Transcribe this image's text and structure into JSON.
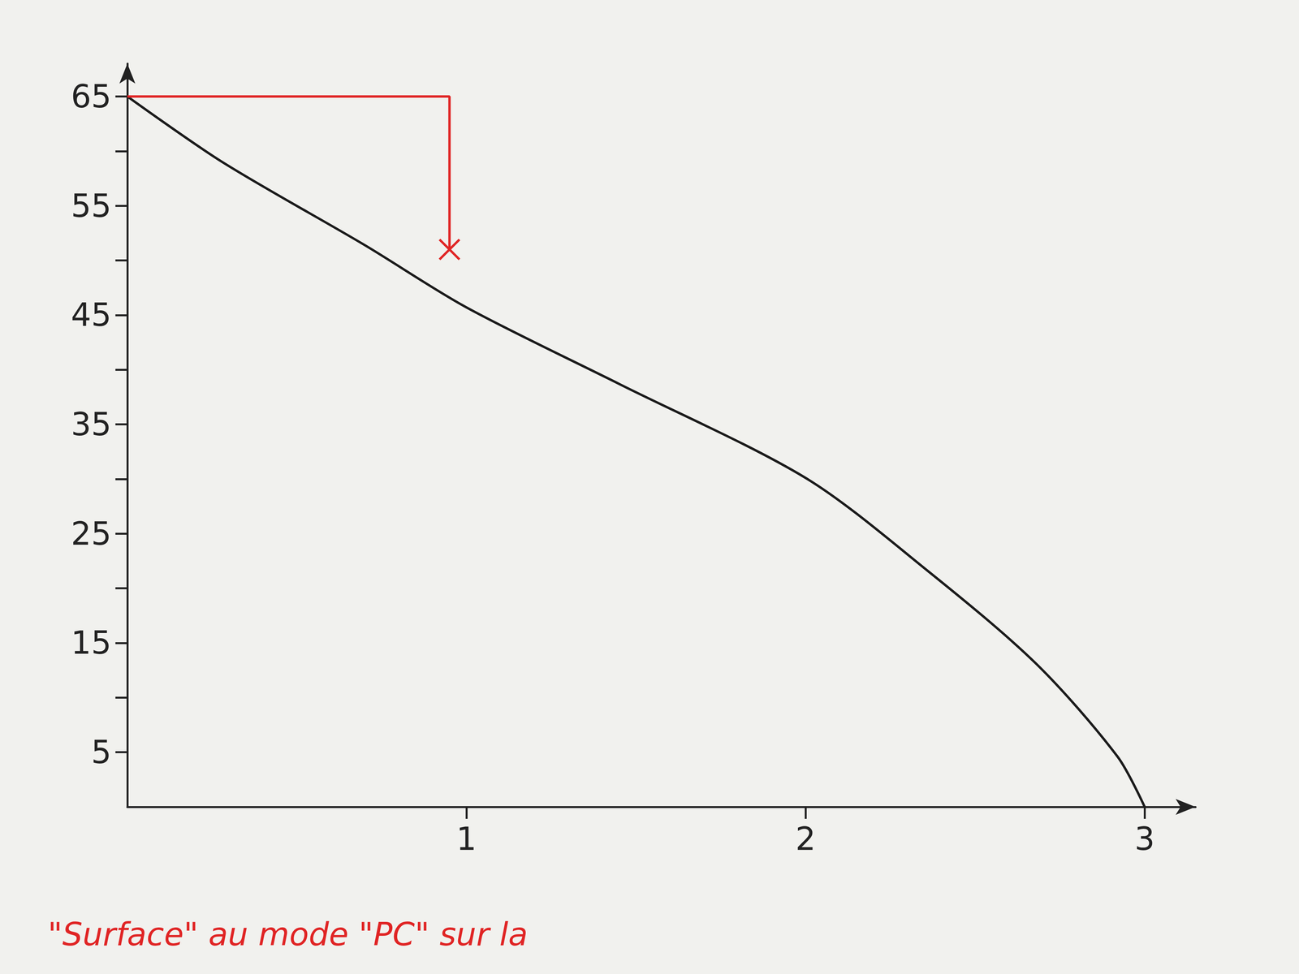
{
  "chart_data": {
    "type": "line",
    "xlim": [
      0,
      3.15
    ],
    "xticks": [
      1,
      2,
      3
    ],
    "ylim": [
      0,
      68
    ],
    "yticks": [
      5,
      15,
      25,
      35,
      45,
      55,
      65
    ],
    "y_unlabelled_ticks": [
      10,
      20,
      30,
      40,
      50,
      60
    ],
    "grid": false,
    "series": [
      {
        "x": [
          0,
          0.28,
          0.7,
          1,
          1.45,
          2,
          2.36,
          2.68,
          2.92,
          3
        ],
        "values": [
          65,
          59,
          51.4,
          45.7,
          38.7,
          30.1,
          21.6,
          13.1,
          4.6,
          0
        ],
        "color": "#1a1a1a",
        "line_style": "solid"
      },
      {
        "x": [
          0,
          0.95,
          0.95
        ],
        "values": [
          65,
          65,
          51
        ],
        "color": "#e02424",
        "line_style": "solid",
        "marker": "x"
      }
    ],
    "annotations": [
      "\"Surface\" au mode \"PC\" sur la"
    ]
  }
}
